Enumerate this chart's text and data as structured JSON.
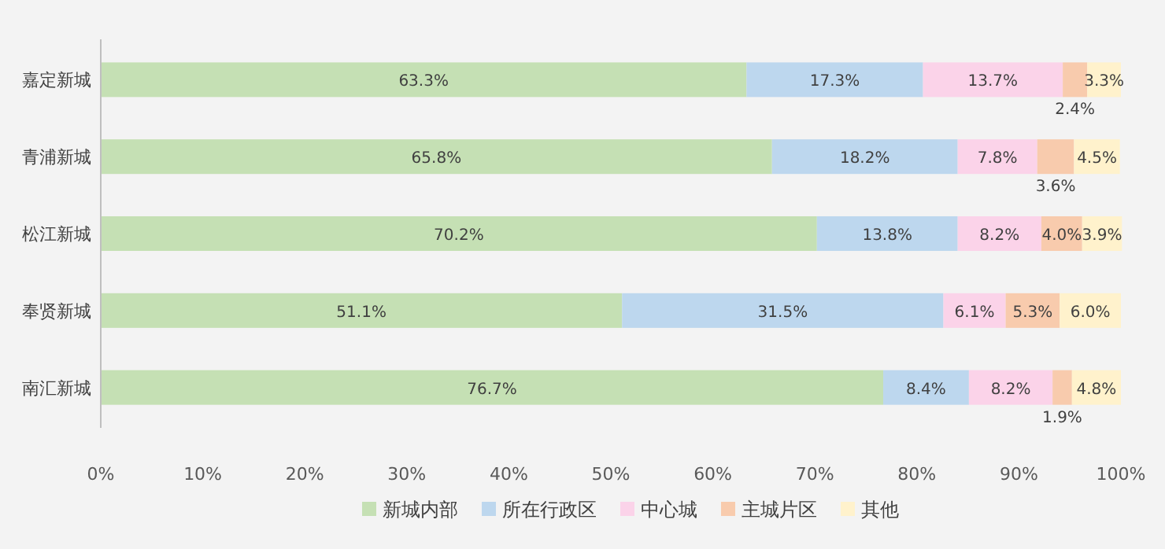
{
  "chart_data": {
    "type": "bar",
    "orientation": "horizontal",
    "stacked": true,
    "categories": [
      "嘉定新城",
      "青浦新城",
      "松江新城",
      "奉贤新城",
      "南汇新城"
    ],
    "series": [
      {
        "name": "新城内部",
        "color": "#c5e0b4",
        "values": [
          63.3,
          65.8,
          70.2,
          51.1,
          76.7
        ],
        "value_labels": [
          "63.3%",
          "65.8%",
          "70.2%",
          "51.1%",
          "76.7%"
        ]
      },
      {
        "name": "所在行政区",
        "color": "#bdd7ee",
        "values": [
          17.3,
          18.2,
          13.8,
          31.5,
          8.4
        ],
        "value_labels": [
          "17.3%",
          "18.2%",
          "13.8%",
          "31.5%",
          "8.4%"
        ]
      },
      {
        "name": "中心城",
        "color": "#fbd3e9",
        "values": [
          13.7,
          7.8,
          8.2,
          6.1,
          8.2
        ],
        "value_labels": [
          "13.7%",
          "7.8%",
          "8.2%",
          "6.1%",
          "8.2%"
        ]
      },
      {
        "name": "主城片区",
        "color": "#f8cbad",
        "values": [
          2.4,
          3.6,
          4.0,
          5.3,
          1.9
        ],
        "value_labels": [
          "2.4%",
          "3.6%",
          "4.0%",
          "5.3%",
          "1.9%"
        ]
      },
      {
        "name": "其他",
        "color": "#fff2cc",
        "values": [
          3.3,
          4.5,
          3.9,
          6.0,
          4.8
        ],
        "value_labels": [
          "3.3%",
          "4.5%",
          "3.9%",
          "6.0%",
          "4.8%"
        ]
      }
    ],
    "xlim": [
      0,
      100
    ],
    "xticks": [
      {
        "value": 0,
        "label": "0%"
      },
      {
        "value": 10,
        "label": "10%"
      },
      {
        "value": 20,
        "label": "20%"
      },
      {
        "value": 30,
        "label": "30%"
      },
      {
        "value": 40,
        "label": "40%"
      },
      {
        "value": 50,
        "label": "50%"
      },
      {
        "value": 60,
        "label": "60%"
      },
      {
        "value": 70,
        "label": "70%"
      },
      {
        "value": 80,
        "label": "80%"
      },
      {
        "value": 90,
        "label": "90%"
      },
      {
        "value": 100,
        "label": "100%"
      }
    ],
    "legend": "bottom"
  }
}
